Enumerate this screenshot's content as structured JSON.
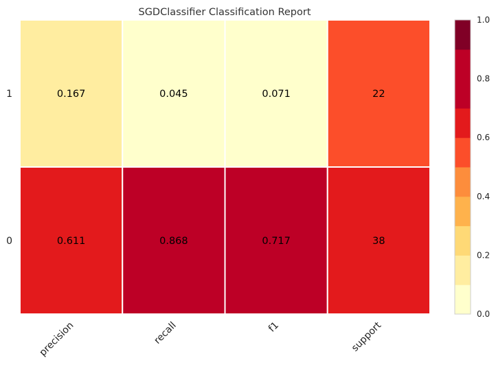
{
  "chart_data": {
    "type": "heatmap",
    "title": "SGDClassifier Classification Report",
    "columns": [
      "precision",
      "recall",
      "f1",
      "support"
    ],
    "rows": [
      "1",
      "0"
    ],
    "values": [
      [
        0.167,
        0.045,
        0.071,
        0.579
      ],
      [
        0.611,
        0.868,
        0.717,
        0.643
      ]
    ],
    "cell_labels": [
      [
        "0.167",
        "0.045",
        "0.071",
        "22"
      ],
      [
        "0.611",
        "0.868",
        "0.717",
        "38"
      ]
    ],
    "colorbar": {
      "min": 0.0,
      "max": 1.0,
      "ticks": [
        "0.0",
        "0.2",
        "0.4",
        "0.6",
        "0.8",
        "1.0"
      ],
      "levels": 10,
      "colors": [
        "#ffffcc",
        "#ffeda0",
        "#fed976",
        "#feb24c",
        "#fd8d3c",
        "#fc4e2a",
        "#e31a1c",
        "#bd0026",
        "#bd0026",
        "#800026"
      ]
    },
    "grid": false,
    "legend": "colorbar-right"
  }
}
